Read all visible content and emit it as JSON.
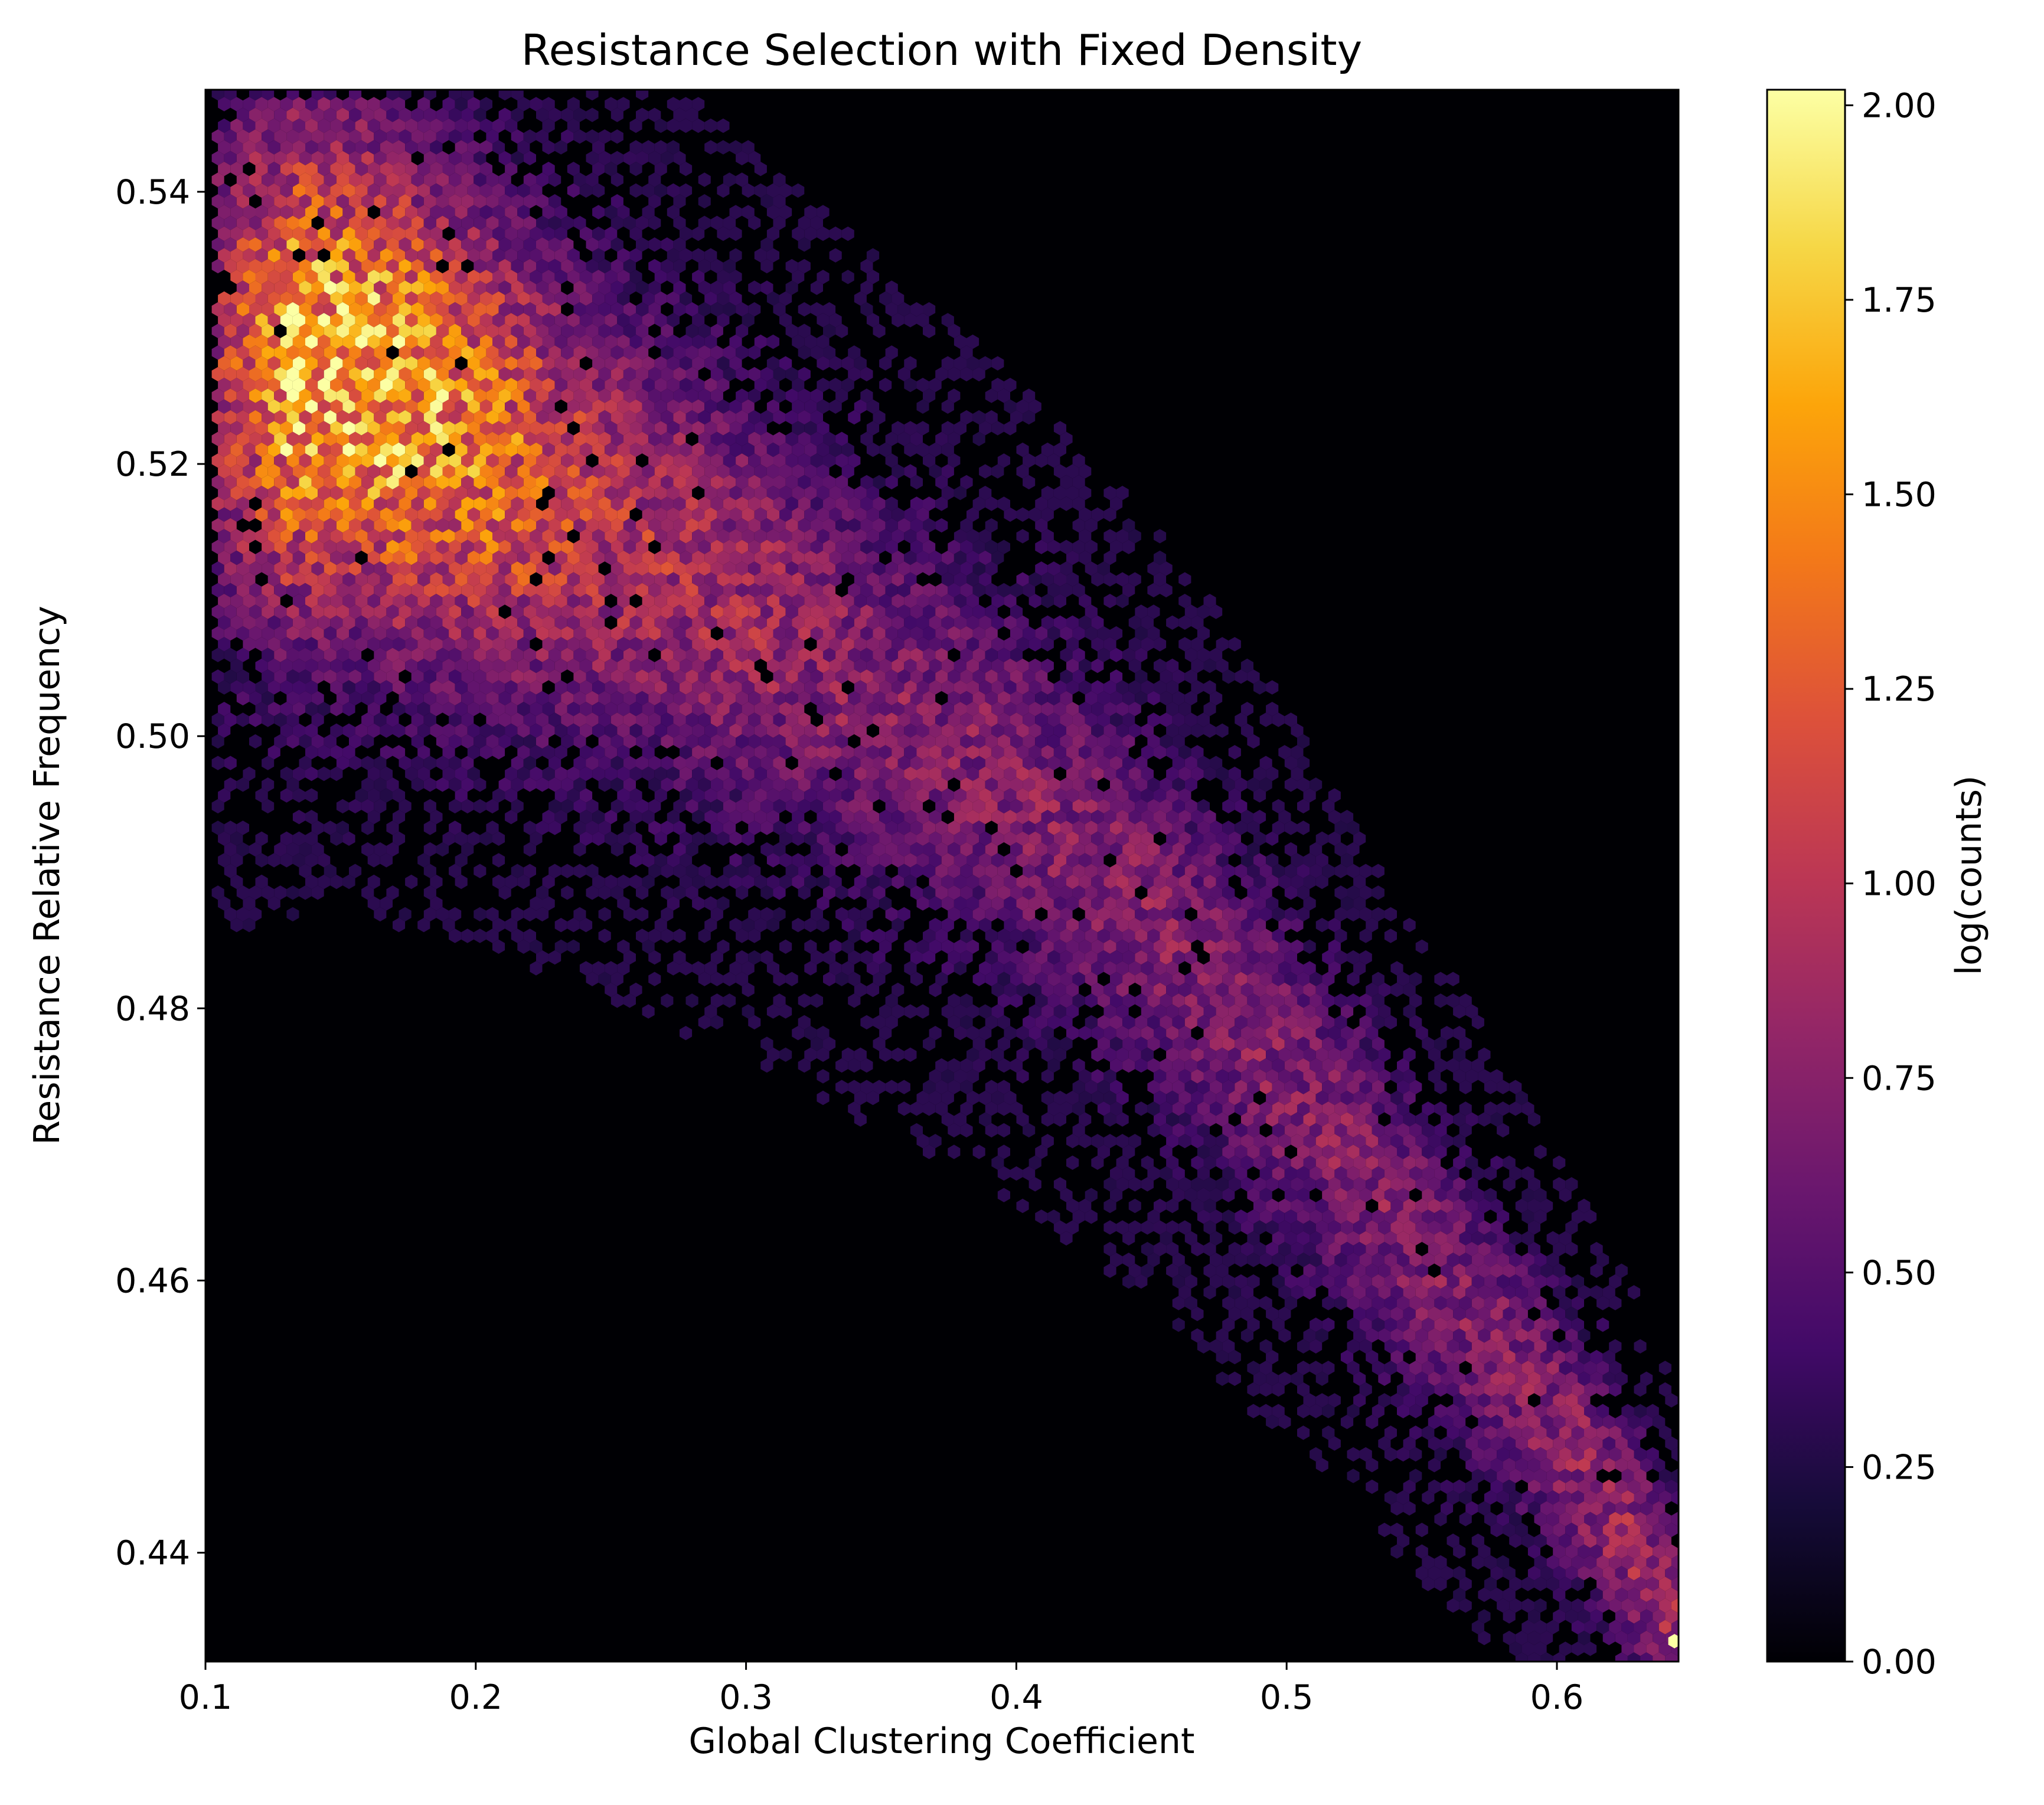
{
  "chart_data": {
    "type": "heatmap",
    "subtype": "hexbin",
    "title": "Resistance Selection with Fixed Density",
    "xlabel": "Global Clustering Coefficient",
    "ylabel": "Resistance Relative Frequency",
    "xlim": [
      0.1,
      0.645
    ],
    "ylim": [
      0.432,
      0.5475
    ],
    "xticks": [
      0.1,
      0.2,
      0.3,
      0.4,
      0.5,
      0.6
    ],
    "xtick_labels": [
      "0.1",
      "0.2",
      "0.3",
      "0.4",
      "0.5",
      "0.6"
    ],
    "yticks": [
      0.44,
      0.46,
      0.48,
      0.5,
      0.52,
      0.54
    ],
    "ytick_labels": [
      "0.44",
      "0.46",
      "0.48",
      "0.50",
      "0.52",
      "0.54"
    ],
    "grid": false,
    "background_color": "#000004",
    "colormap": "inferno",
    "colorbar": {
      "label": "log(counts)",
      "range": [
        0.0,
        2.02
      ],
      "ticks": [
        0.0,
        0.25,
        0.5,
        0.75,
        1.0,
        1.25,
        1.5,
        1.75,
        2.0
      ],
      "tick_labels": [
        "0.00",
        "0.25",
        "0.50",
        "0.75",
        "1.00",
        "1.25",
        "1.50",
        "1.75",
        "2.00"
      ]
    },
    "density_regions": [
      {
        "x": 0.155,
        "y": 0.528,
        "log_counts": 1.7
      },
      {
        "x": 0.16,
        "y": 0.52,
        "log_counts": 1.45
      },
      {
        "x": 0.19,
        "y": 0.526,
        "log_counts": 1.2
      },
      {
        "x": 0.22,
        "y": 0.52,
        "log_counts": 0.95
      },
      {
        "x": 0.28,
        "y": 0.515,
        "log_counts": 0.7
      },
      {
        "x": 0.35,
        "y": 0.503,
        "log_counts": 0.55
      },
      {
        "x": 0.4,
        "y": 0.495,
        "log_counts": 0.5
      },
      {
        "x": 0.46,
        "y": 0.484,
        "log_counts": 0.5
      },
      {
        "x": 0.52,
        "y": 0.465,
        "log_counts": 0.55
      },
      {
        "x": 0.58,
        "y": 0.448,
        "log_counts": 0.6
      },
      {
        "x": 0.625,
        "y": 0.438,
        "log_counts": 0.75
      },
      {
        "x": 0.643,
        "y": 0.4335,
        "log_counts": 2.0
      }
    ]
  }
}
